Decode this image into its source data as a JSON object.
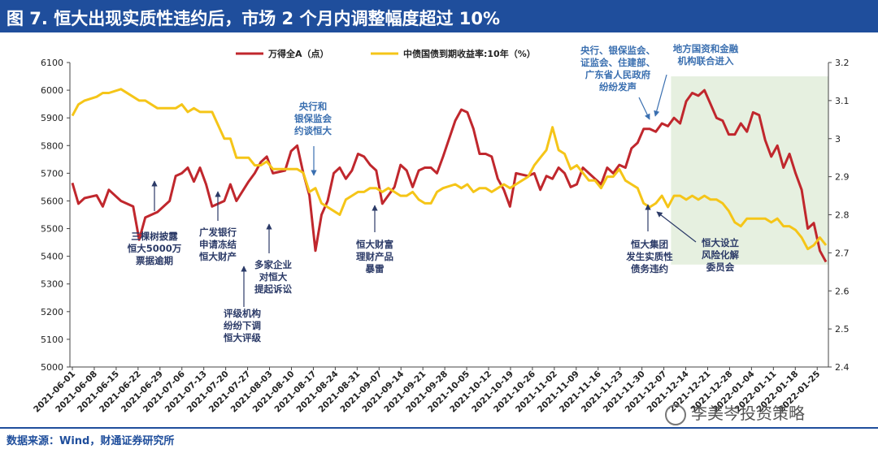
{
  "header": {
    "title": "图 7. 恒大出现实质性违约后，市场 2 个月内调整幅度超过 10%"
  },
  "footer": {
    "source": "数据来源：Wind，财通证券研究所",
    "watermark": "李美岑投资策略"
  },
  "colors": {
    "title_bg": "#1f4e9c",
    "series1": "#c0272d",
    "series2": "#f5c518",
    "shade": "#e6f0e0"
  },
  "chart_data": {
    "type": "line",
    "title": "",
    "legend": [
      "万得全A（点）",
      "中债国债到期收益率:10年（%）"
    ],
    "x_ticks": [
      "2021-06-01",
      "2021-06-08",
      "2021-06-15",
      "2021-06-22",
      "2021-06-29",
      "2021-07-06",
      "2021-07-13",
      "2021-07-20",
      "2021-07-27",
      "2021-08-03",
      "2021-08-10",
      "2021-08-17",
      "2021-08-24",
      "2021-08-31",
      "2021-09-07",
      "2021-09-14",
      "2021-09-21",
      "2021-09-28",
      "2021-10-05",
      "2021-10-12",
      "2021-10-19",
      "2021-10-26",
      "2021-11-02",
      "2021-11-09",
      "2021-11-16",
      "2021-11-23",
      "2021-11-30",
      "2021-12-07",
      "2021-12-14",
      "2021-12-21",
      "2021-12-28",
      "2022-01-04",
      "2022-01-11",
      "2022-01-18",
      "2022-01-25"
    ],
    "y_left": {
      "min": 5000,
      "max": 6100,
      "ticks": [
        5000,
        5100,
        5200,
        5300,
        5400,
        5500,
        5600,
        5700,
        5800,
        5900,
        6000,
        6100
      ]
    },
    "y_right": {
      "min": 2.4,
      "max": 3.2,
      "ticks": [
        "2.4",
        "2.5",
        "2.6",
        "2.7",
        "2.8",
        "2.9",
        "3",
        "3.1",
        "3.2"
      ]
    },
    "shaded_range": [
      "2021-12-01",
      "2022-01-28"
    ],
    "series": [
      {
        "name": "万得全A（点）",
        "axis": "left",
        "points": [
          [
            0,
            5665
          ],
          [
            1,
            5590
          ],
          [
            2,
            5610
          ],
          [
            4,
            5620
          ],
          [
            5,
            5580
          ],
          [
            6,
            5640
          ],
          [
            8,
            5600
          ],
          [
            10,
            5580
          ],
          [
            11,
            5460
          ],
          [
            12,
            5540
          ],
          [
            14,
            5560
          ],
          [
            16,
            5600
          ],
          [
            17,
            5690
          ],
          [
            18,
            5700
          ],
          [
            19,
            5720
          ],
          [
            20,
            5670
          ],
          [
            21,
            5720
          ],
          [
            22,
            5660
          ],
          [
            23,
            5580
          ],
          [
            25,
            5600
          ],
          [
            26,
            5660
          ],
          [
            27,
            5600
          ],
          [
            29,
            5670
          ],
          [
            30,
            5700
          ],
          [
            31,
            5740
          ],
          [
            32,
            5760
          ],
          [
            33,
            5700
          ],
          [
            35,
            5710
          ],
          [
            36,
            5780
          ],
          [
            37,
            5800
          ],
          [
            38,
            5700
          ],
          [
            39,
            5620
          ],
          [
            40,
            5420
          ],
          [
            41,
            5550
          ],
          [
            42,
            5600
          ],
          [
            43,
            5700
          ],
          [
            44,
            5720
          ],
          [
            45,
            5680
          ],
          [
            46,
            5710
          ],
          [
            47,
            5770
          ],
          [
            48,
            5760
          ],
          [
            49,
            5730
          ],
          [
            50,
            5710
          ],
          [
            51,
            5590
          ],
          [
            52,
            5620
          ],
          [
            53,
            5650
          ],
          [
            54,
            5730
          ],
          [
            55,
            5710
          ],
          [
            56,
            5650
          ],
          [
            57,
            5710
          ],
          [
            58,
            5720
          ],
          [
            59,
            5720
          ],
          [
            60,
            5700
          ],
          [
            61,
            5760
          ],
          [
            63,
            5890
          ],
          [
            64,
            5930
          ],
          [
            65,
            5920
          ],
          [
            66,
            5860
          ],
          [
            67,
            5770
          ],
          [
            68,
            5770
          ],
          [
            69,
            5760
          ],
          [
            70,
            5680
          ],
          [
            71,
            5640
          ],
          [
            72,
            5580
          ],
          [
            73,
            5700
          ],
          [
            75,
            5690
          ],
          [
            76,
            5700
          ],
          [
            77,
            5640
          ],
          [
            78,
            5690
          ],
          [
            79,
            5680
          ],
          [
            80,
            5720
          ],
          [
            81,
            5700
          ],
          [
            82,
            5650
          ],
          [
            83,
            5660
          ],
          [
            84,
            5720
          ],
          [
            85,
            5700
          ],
          [
            86,
            5680
          ],
          [
            87,
            5660
          ],
          [
            88,
            5720
          ],
          [
            89,
            5700
          ],
          [
            90,
            5730
          ],
          [
            91,
            5720
          ],
          [
            92,
            5790
          ],
          [
            93,
            5810
          ],
          [
            94,
            5860
          ],
          [
            95,
            5860
          ],
          [
            96,
            5850
          ],
          [
            97,
            5880
          ],
          [
            98,
            5870
          ],
          [
            99,
            5900
          ],
          [
            100,
            5880
          ],
          [
            101,
            5960
          ],
          [
            102,
            5990
          ],
          [
            103,
            5980
          ],
          [
            104,
            6000
          ],
          [
            105,
            5950
          ],
          [
            106,
            5900
          ],
          [
            107,
            5890
          ],
          [
            108,
            5840
          ],
          [
            109,
            5840
          ],
          [
            110,
            5880
          ],
          [
            111,
            5850
          ],
          [
            112,
            5920
          ],
          [
            113,
            5910
          ],
          [
            114,
            5820
          ],
          [
            115,
            5760
          ],
          [
            116,
            5800
          ],
          [
            117,
            5720
          ],
          [
            118,
            5770
          ],
          [
            119,
            5700
          ],
          [
            120,
            5640
          ],
          [
            121,
            5500
          ],
          [
            122,
            5520
          ],
          [
            123,
            5420
          ],
          [
            124,
            5380
          ]
        ]
      },
      {
        "name": "中债国债到期收益率:10年（%）",
        "axis": "right",
        "points": [
          [
            0,
            3.06
          ],
          [
            1,
            3.09
          ],
          [
            2,
            3.1
          ],
          [
            4,
            3.11
          ],
          [
            5,
            3.12
          ],
          [
            6,
            3.12
          ],
          [
            8,
            3.13
          ],
          [
            10,
            3.11
          ],
          [
            11,
            3.1
          ],
          [
            12,
            3.1
          ],
          [
            14,
            3.08
          ],
          [
            16,
            3.08
          ],
          [
            17,
            3.08
          ],
          [
            18,
            3.09
          ],
          [
            19,
            3.07
          ],
          [
            20,
            3.08
          ],
          [
            21,
            3.07
          ],
          [
            22,
            3.07
          ],
          [
            23,
            3.07
          ],
          [
            25,
            3.0
          ],
          [
            26,
            3.0
          ],
          [
            27,
            2.95
          ],
          [
            29,
            2.95
          ],
          [
            30,
            2.93
          ],
          [
            31,
            2.93
          ],
          [
            32,
            2.94
          ],
          [
            33,
            2.92
          ],
          [
            35,
            2.92
          ],
          [
            36,
            2.92
          ],
          [
            37,
            2.92
          ],
          [
            38,
            2.91
          ],
          [
            39,
            2.86
          ],
          [
            40,
            2.87
          ],
          [
            41,
            2.83
          ],
          [
            42,
            2.82
          ],
          [
            43,
            2.81
          ],
          [
            44,
            2.8
          ],
          [
            45,
            2.84
          ],
          [
            46,
            2.85
          ],
          [
            47,
            2.86
          ],
          [
            48,
            2.86
          ],
          [
            49,
            2.87
          ],
          [
            50,
            2.87
          ],
          [
            51,
            2.86
          ],
          [
            52,
            2.87
          ],
          [
            53,
            2.86
          ],
          [
            54,
            2.85
          ],
          [
            55,
            2.85
          ],
          [
            56,
            2.86
          ],
          [
            57,
            2.84
          ],
          [
            58,
            2.83
          ],
          [
            59,
            2.83
          ],
          [
            60,
            2.86
          ],
          [
            61,
            2.87
          ],
          [
            63,
            2.88
          ],
          [
            64,
            2.87
          ],
          [
            65,
            2.88
          ],
          [
            66,
            2.86
          ],
          [
            67,
            2.87
          ],
          [
            68,
            2.87
          ],
          [
            69,
            2.86
          ],
          [
            70,
            2.87
          ],
          [
            71,
            2.88
          ],
          [
            72,
            2.87
          ],
          [
            73,
            2.88
          ],
          [
            75,
            2.9
          ],
          [
            76,
            2.93
          ],
          [
            77,
            2.95
          ],
          [
            78,
            2.97
          ],
          [
            79,
            3.03
          ],
          [
            80,
            2.97
          ],
          [
            81,
            2.96
          ],
          [
            82,
            2.92
          ],
          [
            83,
            2.93
          ],
          [
            84,
            2.91
          ],
          [
            85,
            2.89
          ],
          [
            86,
            2.89
          ],
          [
            87,
            2.87
          ],
          [
            88,
            2.9
          ],
          [
            89,
            2.9
          ],
          [
            90,
            2.92
          ],
          [
            91,
            2.89
          ],
          [
            92,
            2.88
          ],
          [
            93,
            2.87
          ],
          [
            94,
            2.83
          ],
          [
            95,
            2.82
          ],
          [
            96,
            2.83
          ],
          [
            97,
            2.85
          ],
          [
            98,
            2.82
          ],
          [
            99,
            2.85
          ],
          [
            100,
            2.85
          ],
          [
            101,
            2.84
          ],
          [
            102,
            2.85
          ],
          [
            103,
            2.84
          ],
          [
            104,
            2.85
          ],
          [
            105,
            2.84
          ],
          [
            106,
            2.84
          ],
          [
            107,
            2.83
          ],
          [
            108,
            2.81
          ],
          [
            109,
            2.78
          ],
          [
            110,
            2.77
          ],
          [
            111,
            2.79
          ],
          [
            112,
            2.79
          ],
          [
            113,
            2.79
          ],
          [
            114,
            2.79
          ],
          [
            115,
            2.78
          ],
          [
            116,
            2.79
          ],
          [
            117,
            2.77
          ],
          [
            118,
            2.77
          ],
          [
            119,
            2.76
          ],
          [
            120,
            2.74
          ],
          [
            121,
            2.71
          ],
          [
            122,
            2.72
          ],
          [
            123,
            2.74
          ],
          [
            124,
            2.72
          ]
        ]
      }
    ],
    "annotations": [
      {
        "lines": [
          "三棵树披露",
          "恒大5000万",
          "票据逾期"
        ]
      },
      {
        "lines": [
          "广发银行",
          "申请冻结",
          "恒大财产"
        ]
      },
      {
        "lines": [
          "评级机构",
          "纷纷下调",
          "恒大评级"
        ]
      },
      {
        "lines": [
          "多家企业",
          "对恒大",
          "提起诉讼"
        ]
      },
      {
        "lines": [
          "央行和",
          "银保监会",
          "约谈恒大"
        ]
      },
      {
        "lines": [
          "恒大财富",
          "理财产品",
          "暴雷"
        ]
      },
      {
        "lines": [
          "央行、银保监会、",
          "证监会、住建部、",
          "广东省人民政府",
          "纷纷发声"
        ]
      },
      {
        "lines": [
          "地方国资和金融",
          "机构联合进入"
        ]
      },
      {
        "lines": [
          "恒大集团",
          "发生实质性",
          "债务违约"
        ]
      },
      {
        "lines": [
          "恒大设立",
          "风险化解",
          "委员会"
        ]
      }
    ]
  }
}
